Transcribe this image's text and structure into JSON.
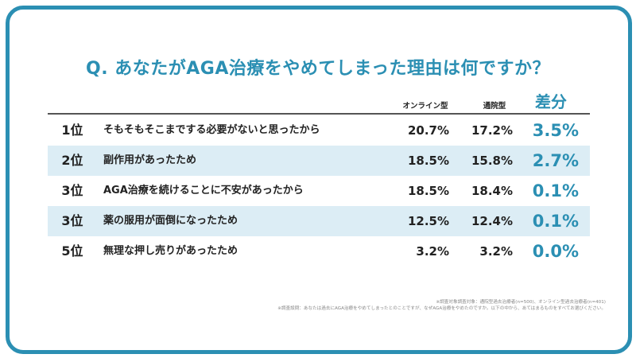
{
  "title": "Q. あなたがAGA治療をやめてしまった理由は何ですか？",
  "chart_data": {
    "type": "table",
    "columns": [
      "オンライン型",
      "通院型",
      "差分"
    ],
    "rows": [
      {
        "rank": "1位",
        "reason": "そもそもそこまでする必要がないと思ったから",
        "online": "20.7%",
        "clinic": "17.2%",
        "diff": "3.5%"
      },
      {
        "rank": "2位",
        "reason": "副作用があったため",
        "online": "18.5%",
        "clinic": "15.8%",
        "diff": "2.7%"
      },
      {
        "rank": "3位",
        "reason": "AGA治療を続けることに不安があったから",
        "online": "18.5%",
        "clinic": "18.4%",
        "diff": "0.1%"
      },
      {
        "rank": "3位",
        "reason": "薬の服用が面倒になったため",
        "online": "12.5%",
        "clinic": "12.4%",
        "diff": "0.1%"
      },
      {
        "rank": "5位",
        "reason": "無理な押し売りがあったため",
        "online": "3.2%",
        "clinic": "3.2%",
        "diff": "0.0%"
      }
    ]
  },
  "notes": {
    "line1": "※調査対象調査対象：通院型過去治療者(n=500)、オンライン型過去治療者(n=401)",
    "line2": "※調査設問：あなたは過去にAGA治療をやめてしまったとのことですが、なぜAGA治療をやめたのですか。以下の中から、あてはまるものをすべてお選びください。"
  },
  "colors": {
    "accent": "#2b8fb3",
    "row_shade": "#dcedf5",
    "text": "#222222"
  }
}
